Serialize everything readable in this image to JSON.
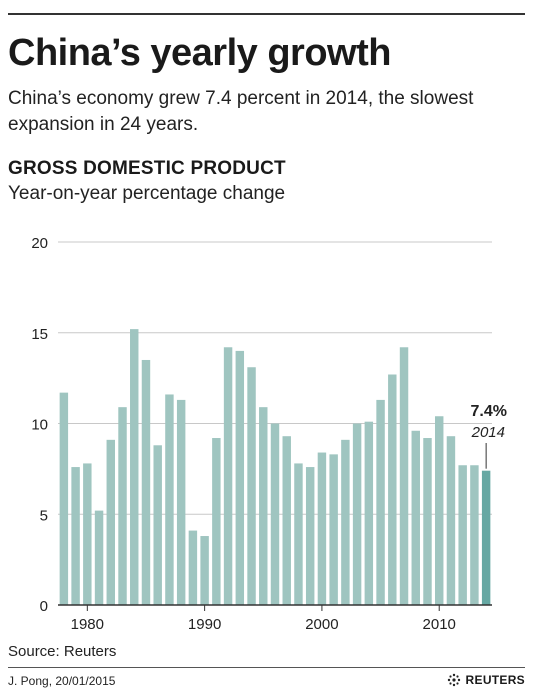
{
  "header": {
    "title": "China’s yearly growth",
    "subtitle": "China’s economy grew 7.4 percent in 2014, the slowest expansion in 24 years."
  },
  "section": {
    "title": "GROSS DOMESTIC PRODUCT",
    "subtitle": "Year-on-year percentage change"
  },
  "chart_data": {
    "type": "bar",
    "title": "GROSS DOMESTIC PRODUCT",
    "subtitle": "Year-on-year percentage change",
    "xlabel": "",
    "ylabel": "",
    "ylim": [
      0,
      20
    ],
    "yticks": [
      0,
      5,
      10,
      15,
      20
    ],
    "xticks": [
      1980,
      1990,
      2000,
      2010
    ],
    "grid": true,
    "x": [
      1978,
      1979,
      1980,
      1981,
      1982,
      1983,
      1984,
      1985,
      1986,
      1987,
      1988,
      1989,
      1990,
      1991,
      1992,
      1993,
      1994,
      1995,
      1996,
      1997,
      1998,
      1999,
      2000,
      2001,
      2002,
      2003,
      2004,
      2005,
      2006,
      2007,
      2008,
      2009,
      2010,
      2011,
      2012,
      2013,
      2014
    ],
    "values": [
      11.7,
      7.6,
      7.8,
      5.2,
      9.1,
      10.9,
      15.2,
      13.5,
      8.8,
      11.6,
      11.3,
      4.1,
      3.8,
      9.2,
      14.2,
      14.0,
      13.1,
      10.9,
      10.0,
      9.3,
      7.8,
      7.6,
      8.4,
      8.3,
      9.1,
      10.0,
      10.1,
      11.3,
      12.7,
      14.2,
      9.6,
      9.2,
      10.4,
      9.3,
      7.7,
      7.7,
      7.4
    ],
    "annotation": {
      "value_label": "7.4%",
      "year_label": "2014"
    },
    "colors": {
      "bar": "#9fc5c0",
      "highlight": "#66a8a3",
      "grid": "#c8c8c8",
      "axis": "#333333"
    }
  },
  "footer": {
    "source": "Source: Reuters",
    "credit": "J. Pong, 20/01/2015",
    "logo": "REUTERS"
  }
}
